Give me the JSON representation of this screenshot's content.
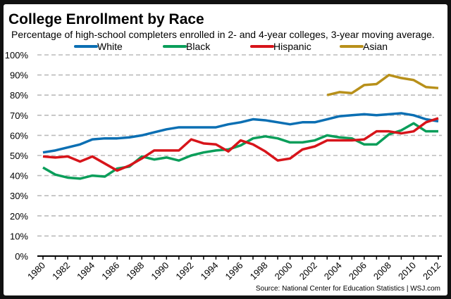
{
  "chart_data": {
    "type": "line",
    "title": "College Enrollment by Race",
    "subtitle": "Percentage of high-school completers enrolled in 2- and 4-year colleges, 3-year moving average.",
    "source": "Source: National Center for Education Statistics  |  WSJ.com",
    "xlim": [
      1980,
      2012
    ],
    "ylim": [
      0,
      100
    ],
    "yticks": [
      "0%",
      "10%",
      "20%",
      "30%",
      "40%",
      "50%",
      "60%",
      "70%",
      "80%",
      "90%",
      "100%"
    ],
    "xticks": [
      "1980",
      "1982",
      "1984",
      "1986",
      "1988",
      "1990",
      "1992",
      "1994",
      "1996",
      "1998",
      "2000",
      "2002",
      "2004",
      "2006",
      "2008",
      "2010",
      "2012"
    ],
    "grid": true,
    "legend_position": "top",
    "series": [
      {
        "name": "White",
        "color": "#0b6fb3",
        "x_start": 1980,
        "values": [
          51.5,
          52.5,
          54,
          55.5,
          58,
          58.5,
          58.5,
          59,
          60,
          61.5,
          63,
          64,
          64,
          64,
          64,
          65.5,
          66.5,
          68,
          67.5,
          66.5,
          65.5,
          66.5,
          66.5,
          68,
          69.5,
          70,
          70.5,
          70,
          70.5,
          71,
          70,
          68,
          67
        ]
      },
      {
        "name": "Black",
        "color": "#0a9e5a",
        "x_start": 1980,
        "values": [
          44,
          40.5,
          39,
          38.5,
          40,
          39.5,
          43.5,
          44.5,
          49.5,
          48,
          49,
          47.5,
          50,
          51.5,
          52.5,
          53,
          55,
          58.5,
          59.5,
          58.5,
          56.5,
          56.5,
          57.5,
          60,
          59,
          58.5,
          55.5,
          55.5,
          60.5,
          62.5,
          66,
          62,
          62
        ]
      },
      {
        "name": "Hispanic",
        "color": "#d7141a",
        "x_start": 1980,
        "values": [
          49.5,
          49,
          49.5,
          47,
          49.5,
          46,
          42.5,
          45,
          48.5,
          52.5,
          52.5,
          52.5,
          58,
          56,
          55.5,
          52,
          57.5,
          55.5,
          52,
          47.5,
          48.5,
          53,
          54.5,
          57.5,
          57.5,
          57.5,
          58,
          62,
          62,
          61,
          62,
          66.5,
          68.5
        ]
      },
      {
        "name": "Asian",
        "color": "#b8901a",
        "x_start": 2003,
        "values": [
          80,
          81.5,
          81,
          85,
          85.5,
          90,
          88.5,
          87.5,
          84,
          83.5
        ]
      }
    ]
  }
}
